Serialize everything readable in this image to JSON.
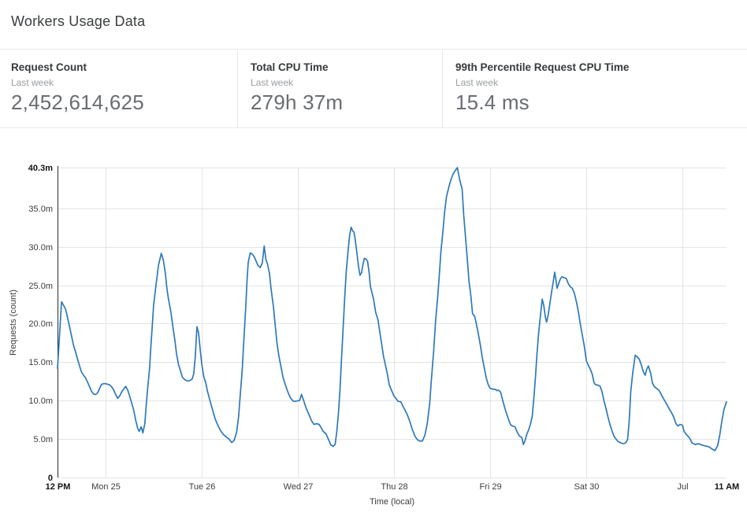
{
  "page": {
    "title": "Workers Usage Data"
  },
  "stats": {
    "cards": [
      {
        "label": "Request Count",
        "period": "Last week",
        "value": "2,452,614,625"
      },
      {
        "label": "Total CPU Time",
        "period": "Last week",
        "value": "279h 37m"
      },
      {
        "label": "99th Percentile Request CPU Time",
        "period": "Last week",
        "value": "15.4 ms"
      }
    ]
  },
  "chart_data": {
    "type": "line",
    "title": "",
    "xlabel": "Time (local)",
    "ylabel": "Requests (count)",
    "x_unit": "hours since first point (Sun 12 PM, local)",
    "xlim": [
      0,
      167
    ],
    "ylim": [
      0,
      40.3
    ],
    "grid": true,
    "legend": "none",
    "line_color": "#2e79b8",
    "grid_color": "#e4e4e4",
    "axis_color": "#2b2b2b",
    "tick_color": "#3c3c3c",
    "tick_bold_color": "#141414",
    "y_ticks": [
      {
        "v": 0,
        "label": "0",
        "bold": true
      },
      {
        "v": 5,
        "label": "5.0m",
        "bold": false
      },
      {
        "v": 10,
        "label": "10.0m",
        "bold": false
      },
      {
        "v": 15,
        "label": "15.0m",
        "bold": false
      },
      {
        "v": 20,
        "label": "20.0m",
        "bold": false
      },
      {
        "v": 25,
        "label": "25.0m",
        "bold": false
      },
      {
        "v": 30,
        "label": "30.0m",
        "bold": false
      },
      {
        "v": 35,
        "label": "35.0m",
        "bold": false
      },
      {
        "v": 40.3,
        "label": "40.3m",
        "bold": true
      }
    ],
    "x_ticks": [
      {
        "t": 0,
        "label": "12 PM",
        "bold": true,
        "grid": false
      },
      {
        "t": 12,
        "label": "Mon 25",
        "bold": false,
        "grid": true
      },
      {
        "t": 36,
        "label": "Tue 26",
        "bold": false,
        "grid": true
      },
      {
        "t": 60,
        "label": "Wed 27",
        "bold": false,
        "grid": true
      },
      {
        "t": 84,
        "label": "Thu 28",
        "bold": false,
        "grid": true
      },
      {
        "t": 108,
        "label": "Fri 29",
        "bold": false,
        "grid": true
      },
      {
        "t": 132,
        "label": "Sat 30",
        "bold": false,
        "grid": true
      },
      {
        "t": 156,
        "label": "Jul",
        "bold": false,
        "grid": true
      },
      {
        "t": 167,
        "label": "11 AM",
        "bold": true,
        "grid": false
      }
    ],
    "points": [
      [
        0,
        14.2
      ],
      [
        1,
        22.85
      ],
      [
        1.5,
        22.4
      ],
      [
        2,
        21.9
      ],
      [
        2.5,
        20.8
      ],
      [
        3,
        19.6
      ],
      [
        3.5,
        18.4
      ],
      [
        4,
        17.2
      ],
      [
        4.5,
        16.3
      ],
      [
        5,
        15.4
      ],
      [
        5.5,
        14.5
      ],
      [
        6,
        13.7
      ],
      [
        6.5,
        13.3
      ],
      [
        7,
        12.95
      ],
      [
        7.5,
        12.4
      ],
      [
        8,
        11.8
      ],
      [
        8.5,
        11.2
      ],
      [
        9,
        10.85
      ],
      [
        9.5,
        10.8
      ],
      [
        10,
        11.0
      ],
      [
        10.5,
        11.6
      ],
      [
        11,
        12.1
      ],
      [
        11.5,
        12.2
      ],
      [
        12,
        12.2
      ],
      [
        13,
        12.05
      ],
      [
        13.5,
        11.8
      ],
      [
        14,
        11.4
      ],
      [
        14.5,
        10.8
      ],
      [
        15,
        10.3
      ],
      [
        15.5,
        10.6
      ],
      [
        16,
        11.1
      ],
      [
        16.5,
        11.5
      ],
      [
        17,
        11.85
      ],
      [
        17.5,
        11.4
      ],
      [
        18,
        10.6
      ],
      [
        18.5,
        9.7
      ],
      [
        19,
        8.8
      ],
      [
        19.5,
        7.5
      ],
      [
        20,
        6.4
      ],
      [
        20.4,
        6.0
      ],
      [
        20.9,
        6.6
      ],
      [
        21.3,
        5.8
      ],
      [
        21.8,
        7.0
      ],
      [
        22.1,
        9.2
      ],
      [
        22.5,
        11.6
      ],
      [
        23,
        14.3
      ],
      [
        23.3,
        17.1
      ],
      [
        23.7,
        20.1
      ],
      [
        24,
        22.5
      ],
      [
        24.4,
        24.2
      ],
      [
        24.8,
        25.9
      ],
      [
        25.2,
        27.6
      ],
      [
        25.9,
        29.15
      ],
      [
        26.4,
        28.3
      ],
      [
        26.9,
        26.6
      ],
      [
        27.3,
        24.6
      ],
      [
        27.7,
        23.2
      ],
      [
        28.3,
        21.5
      ],
      [
        28.8,
        19.6
      ],
      [
        29.3,
        17.8
      ],
      [
        29.7,
        16.1
      ],
      [
        30.2,
        14.7
      ],
      [
        30.8,
        13.7
      ],
      [
        31.2,
        13.0
      ],
      [
        31.8,
        12.7
      ],
      [
        32.4,
        12.55
      ],
      [
        33,
        12.6
      ],
      [
        33.6,
        12.8
      ],
      [
        34,
        13.5
      ],
      [
        34.4,
        15.8
      ],
      [
        34.8,
        19.6
      ],
      [
        35.2,
        18.8
      ],
      [
        35.6,
        16.7
      ],
      [
        36,
        14.8
      ],
      [
        36.5,
        13.1
      ],
      [
        37,
        12.35
      ],
      [
        37.4,
        11.3
      ],
      [
        38.1,
        9.9
      ],
      [
        38.8,
        8.6
      ],
      [
        39.4,
        7.55
      ],
      [
        40.1,
        6.7
      ],
      [
        40.7,
        6.1
      ],
      [
        41.4,
        5.6
      ],
      [
        42.2,
        5.25
      ],
      [
        42.8,
        5.0
      ],
      [
        43.5,
        4.55
      ],
      [
        44.1,
        4.85
      ],
      [
        44.7,
        5.85
      ],
      [
        45.2,
        7.9
      ],
      [
        45.6,
        10.6
      ],
      [
        46.1,
        14.0
      ],
      [
        46.5,
        17.75
      ],
      [
        47,
        22.2
      ],
      [
        47.3,
        25.6
      ],
      [
        47.6,
        27.95
      ],
      [
        48.1,
        29.2
      ],
      [
        48.6,
        29.05
      ],
      [
        49.1,
        28.7
      ],
      [
        49.6,
        28.1
      ],
      [
        50,
        27.6
      ],
      [
        50.6,
        27.3
      ],
      [
        51.1,
        27.85
      ],
      [
        51.6,
        30.1
      ],
      [
        52,
        28.35
      ],
      [
        52.4,
        27.8
      ],
      [
        52.9,
        26.6
      ],
      [
        53.3,
        24.55
      ],
      [
        53.9,
        22.2
      ],
      [
        54.4,
        19.45
      ],
      [
        54.8,
        17.4
      ],
      [
        55.3,
        15.7
      ],
      [
        55.8,
        14.35
      ],
      [
        56.3,
        13.0
      ],
      [
        57,
        11.85
      ],
      [
        57.6,
        11.0
      ],
      [
        58.2,
        10.3
      ],
      [
        58.9,
        9.9
      ],
      [
        59.8,
        9.95
      ],
      [
        60.4,
        10.0
      ],
      [
        60.9,
        10.8
      ],
      [
        61.4,
        10.1
      ],
      [
        62,
        9.1
      ],
      [
        62.7,
        8.25
      ],
      [
        63.4,
        7.4
      ],
      [
        64,
        6.9
      ],
      [
        64.7,
        7.0
      ],
      [
        65.3,
        6.9
      ],
      [
        65.8,
        6.5
      ],
      [
        66.3,
        6.0
      ],
      [
        67,
        5.7
      ],
      [
        67.6,
        5.0
      ],
      [
        68.2,
        4.25
      ],
      [
        68.8,
        4.05
      ],
      [
        69.3,
        4.3
      ],
      [
        69.7,
        5.85
      ],
      [
        70.1,
        8.2
      ],
      [
        70.5,
        11.3
      ],
      [
        70.9,
        15.4
      ],
      [
        71.3,
        19.5
      ],
      [
        71.7,
        23.5
      ],
      [
        72.1,
        26.9
      ],
      [
        72.5,
        29.3
      ],
      [
        72.9,
        31.4
      ],
      [
        73.3,
        32.55
      ],
      [
        73.7,
        32.05
      ],
      [
        74,
        31.9
      ],
      [
        74.3,
        31.0
      ],
      [
        74.7,
        29.3
      ],
      [
        75.1,
        27.6
      ],
      [
        75.5,
        26.3
      ],
      [
        75.9,
        26.65
      ],
      [
        76.2,
        27.6
      ],
      [
        76.6,
        28.5
      ],
      [
        77,
        28.4
      ],
      [
        77.4,
        28.1
      ],
      [
        77.8,
        26.6
      ],
      [
        78.1,
        24.9
      ],
      [
        78.5,
        24.0
      ],
      [
        78.9,
        23.2
      ],
      [
        79.4,
        21.5
      ],
      [
        80,
        20.5
      ],
      [
        80.4,
        19.1
      ],
      [
        80.9,
        17.4
      ],
      [
        81.4,
        15.7
      ],
      [
        81.9,
        14.5
      ],
      [
        82.4,
        13.3
      ],
      [
        82.8,
        12.1
      ],
      [
        83.4,
        11.3
      ],
      [
        84,
        10.6
      ],
      [
        84.6,
        10.2
      ],
      [
        85,
        9.9
      ],
      [
        85.7,
        9.85
      ],
      [
        86.1,
        9.4
      ],
      [
        86.6,
        8.9
      ],
      [
        87.3,
        8.2
      ],
      [
        88,
        7.2
      ],
      [
        88.6,
        6.2
      ],
      [
        89.3,
        5.3
      ],
      [
        89.9,
        4.9
      ],
      [
        90.4,
        4.75
      ],
      [
        91.1,
        4.75
      ],
      [
        91.7,
        5.5
      ],
      [
        92.3,
        7.0
      ],
      [
        92.9,
        9.6
      ],
      [
        93.3,
        12.5
      ],
      [
        93.9,
        16.5
      ],
      [
        94.4,
        20.5
      ],
      [
        94.9,
        23.5
      ],
      [
        95.3,
        26.3
      ],
      [
        95.7,
        29.3
      ],
      [
        96.2,
        32.0
      ],
      [
        96.6,
        34.4
      ],
      [
        97.1,
        36.5
      ],
      [
        97.7,
        37.8
      ],
      [
        98.2,
        38.7
      ],
      [
        98.7,
        39.4
      ],
      [
        99.2,
        39.85
      ],
      [
        99.8,
        40.3
      ],
      [
        100.4,
        38.7
      ],
      [
        101,
        37.5
      ],
      [
        101.4,
        34.1
      ],
      [
        101.9,
        31.0
      ],
      [
        102.3,
        28.3
      ],
      [
        102.7,
        25.6
      ],
      [
        103.2,
        23.5
      ],
      [
        103.6,
        21.3
      ],
      [
        104.1,
        21.0
      ],
      [
        104.5,
        20.1
      ],
      [
        105,
        18.8
      ],
      [
        105.5,
        17.4
      ],
      [
        106,
        15.7
      ],
      [
        106.5,
        14.35
      ],
      [
        107,
        13.0
      ],
      [
        107.5,
        12.1
      ],
      [
        108,
        11.6
      ],
      [
        108.6,
        11.5
      ],
      [
        109.3,
        11.45
      ],
      [
        109.7,
        11.3
      ],
      [
        110.1,
        11.35
      ],
      [
        110.6,
        11.1
      ],
      [
        111.2,
        9.9
      ],
      [
        111.9,
        8.6
      ],
      [
        112.6,
        7.55
      ],
      [
        113.1,
        6.85
      ],
      [
        113.6,
        6.7
      ],
      [
        114.2,
        6.6
      ],
      [
        114.8,
        5.85
      ],
      [
        115.3,
        5.4
      ],
      [
        115.9,
        5.2
      ],
      [
        116.3,
        4.3
      ],
      [
        116.7,
        4.8
      ],
      [
        117.2,
        5.7
      ],
      [
        117.6,
        6.2
      ],
      [
        118,
        6.85
      ],
      [
        118.5,
        7.9
      ],
      [
        118.9,
        10.3
      ],
      [
        119.3,
        13.0
      ],
      [
        119.7,
        16.1
      ],
      [
        120.1,
        18.8
      ],
      [
        120.5,
        20.8
      ],
      [
        121,
        23.2
      ],
      [
        121.4,
        22.3
      ],
      [
        121.8,
        20.8
      ],
      [
        122.1,
        20.2
      ],
      [
        122.5,
        21.2
      ],
      [
        122.9,
        22.6
      ],
      [
        123.3,
        24.0
      ],
      [
        123.7,
        25.3
      ],
      [
        124.1,
        26.7
      ],
      [
        124.4,
        25.8
      ],
      [
        124.7,
        24.6
      ],
      [
        125.1,
        25.2
      ],
      [
        125.5,
        25.8
      ],
      [
        125.9,
        26.1
      ],
      [
        126.4,
        26.0
      ],
      [
        127,
        25.9
      ],
      [
        127.5,
        25.2
      ],
      [
        128,
        24.8
      ],
      [
        128.5,
        24.6
      ],
      [
        129,
        24.0
      ],
      [
        129.5,
        22.9
      ],
      [
        130,
        21.6
      ],
      [
        130.5,
        20.0
      ],
      [
        131,
        18.5
      ],
      [
        131.5,
        17.1
      ],
      [
        132,
        15.2
      ],
      [
        132.5,
        14.6
      ],
      [
        133,
        14.1
      ],
      [
        133.5,
        13.4
      ],
      [
        133.9,
        12.4
      ],
      [
        134.2,
        12.1
      ],
      [
        134.9,
        12.0
      ],
      [
        135.4,
        11.9
      ],
      [
        135.9,
        11.2
      ],
      [
        136.4,
        10.0
      ],
      [
        136.9,
        9.0
      ],
      [
        137.4,
        7.9
      ],
      [
        137.9,
        6.9
      ],
      [
        138.4,
        6.1
      ],
      [
        138.9,
        5.4
      ],
      [
        139.4,
        5.0
      ],
      [
        139.9,
        4.7
      ],
      [
        140.6,
        4.5
      ],
      [
        141.2,
        4.4
      ],
      [
        141.8,
        4.5
      ],
      [
        142.3,
        4.9
      ],
      [
        142.7,
        7.3
      ],
      [
        143.1,
        11.2
      ],
      [
        143.6,
        13.6
      ],
      [
        144.2,
        15.9
      ],
      [
        144.7,
        15.7
      ],
      [
        145.2,
        15.4
      ],
      [
        145.7,
        14.7
      ],
      [
        146.2,
        13.8
      ],
      [
        146.7,
        13.3
      ],
      [
        147.1,
        14.1
      ],
      [
        147.5,
        14.5
      ],
      [
        148.1,
        13.5
      ],
      [
        148.5,
        12.3
      ],
      [
        149,
        11.8
      ],
      [
        149.5,
        11.6
      ],
      [
        150.2,
        11.3
      ],
      [
        150.7,
        10.8
      ],
      [
        151.2,
        10.3
      ],
      [
        151.8,
        9.8
      ],
      [
        152.5,
        9.1
      ],
      [
        153.1,
        8.6
      ],
      [
        153.8,
        7.9
      ],
      [
        154.4,
        7.0
      ],
      [
        154.9,
        6.7
      ],
      [
        155.4,
        6.9
      ],
      [
        156,
        6.8
      ],
      [
        156.4,
        6.0
      ],
      [
        157.1,
        5.5
      ],
      [
        157.7,
        5.2
      ],
      [
        158.4,
        4.5
      ],
      [
        159.2,
        4.3
      ],
      [
        160,
        4.4
      ],
      [
        161,
        4.2
      ],
      [
        161.8,
        4.1
      ],
      [
        162.6,
        4.0
      ],
      [
        163.4,
        3.7
      ],
      [
        164.1,
        3.5
      ],
      [
        164.8,
        4.15
      ],
      [
        165.3,
        5.5
      ],
      [
        165.8,
        7.2
      ],
      [
        166.4,
        8.9
      ],
      [
        167,
        9.85
      ]
    ]
  }
}
